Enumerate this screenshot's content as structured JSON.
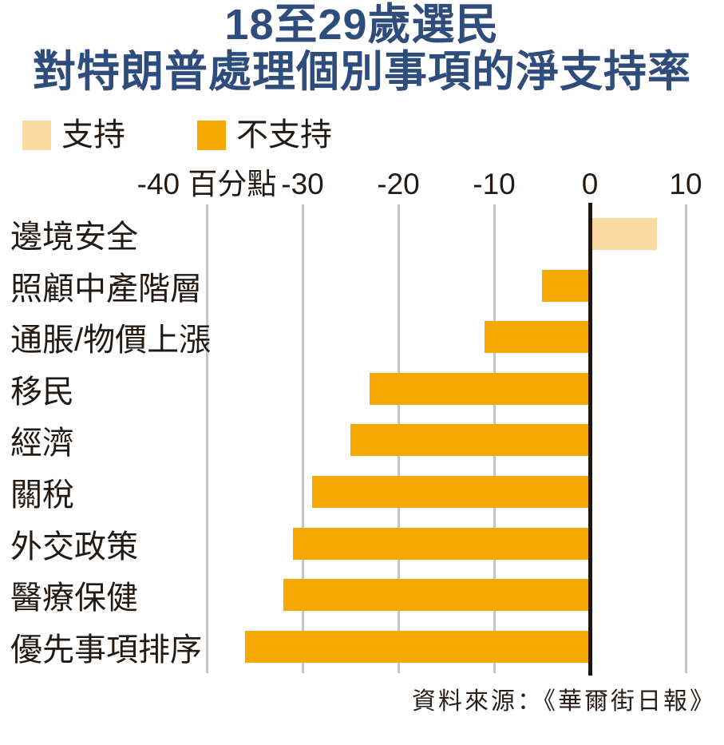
{
  "title": {
    "line1": "18至29歲選民",
    "line2": "對特朗普處理個別事項的淨支持率"
  },
  "legend": {
    "items": [
      {
        "label": "支持",
        "color": "#FBD9A2"
      },
      {
        "label": "不支持",
        "color": "#F5A702"
      }
    ]
  },
  "source": {
    "text": "資料來源：《華爾街日報》"
  },
  "colors": {
    "approve_bar": "#FBD9A2",
    "disapprove_bar": "#F5A702",
    "title_text": "#2F4D7C",
    "body_text": "#231A13",
    "gridline": "#C6C6C6",
    "zero_line": "#1E1610",
    "background": "#FFFFFF"
  },
  "chart_data": {
    "type": "bar",
    "orientation": "horizontal",
    "title": "18至29歲選民對特朗普處理個別事項的淨支持率",
    "unit_label": "百分點",
    "categories": [
      "邊境安全",
      "照顧中產階層",
      "通脹/物價上漲",
      "移民",
      "經濟",
      "關稅",
      "外交政策",
      "醫療保健",
      "優先事項排序"
    ],
    "values": [
      7,
      -5,
      -11,
      -23,
      -25,
      -29,
      -31,
      -32,
      -36
    ],
    "series": [
      {
        "name": "支持",
        "color": "#FBD9A2",
        "applies_to": "positive_values"
      },
      {
        "name": "不支持",
        "color": "#F5A702",
        "applies_to": "negative_values"
      }
    ],
    "x_ticks": [
      {
        "value": -40,
        "label": "-40 百分點"
      },
      {
        "value": -30,
        "label": "-30"
      },
      {
        "value": -20,
        "label": "-20"
      },
      {
        "value": -10,
        "label": "-10"
      },
      {
        "value": 0,
        "label": "0"
      },
      {
        "value": 10,
        "label": "10"
      }
    ],
    "xlim": [
      -40,
      10
    ],
    "grid": true,
    "legend_position": "top-left",
    "source": "資料來源：《華爾街日報》"
  }
}
